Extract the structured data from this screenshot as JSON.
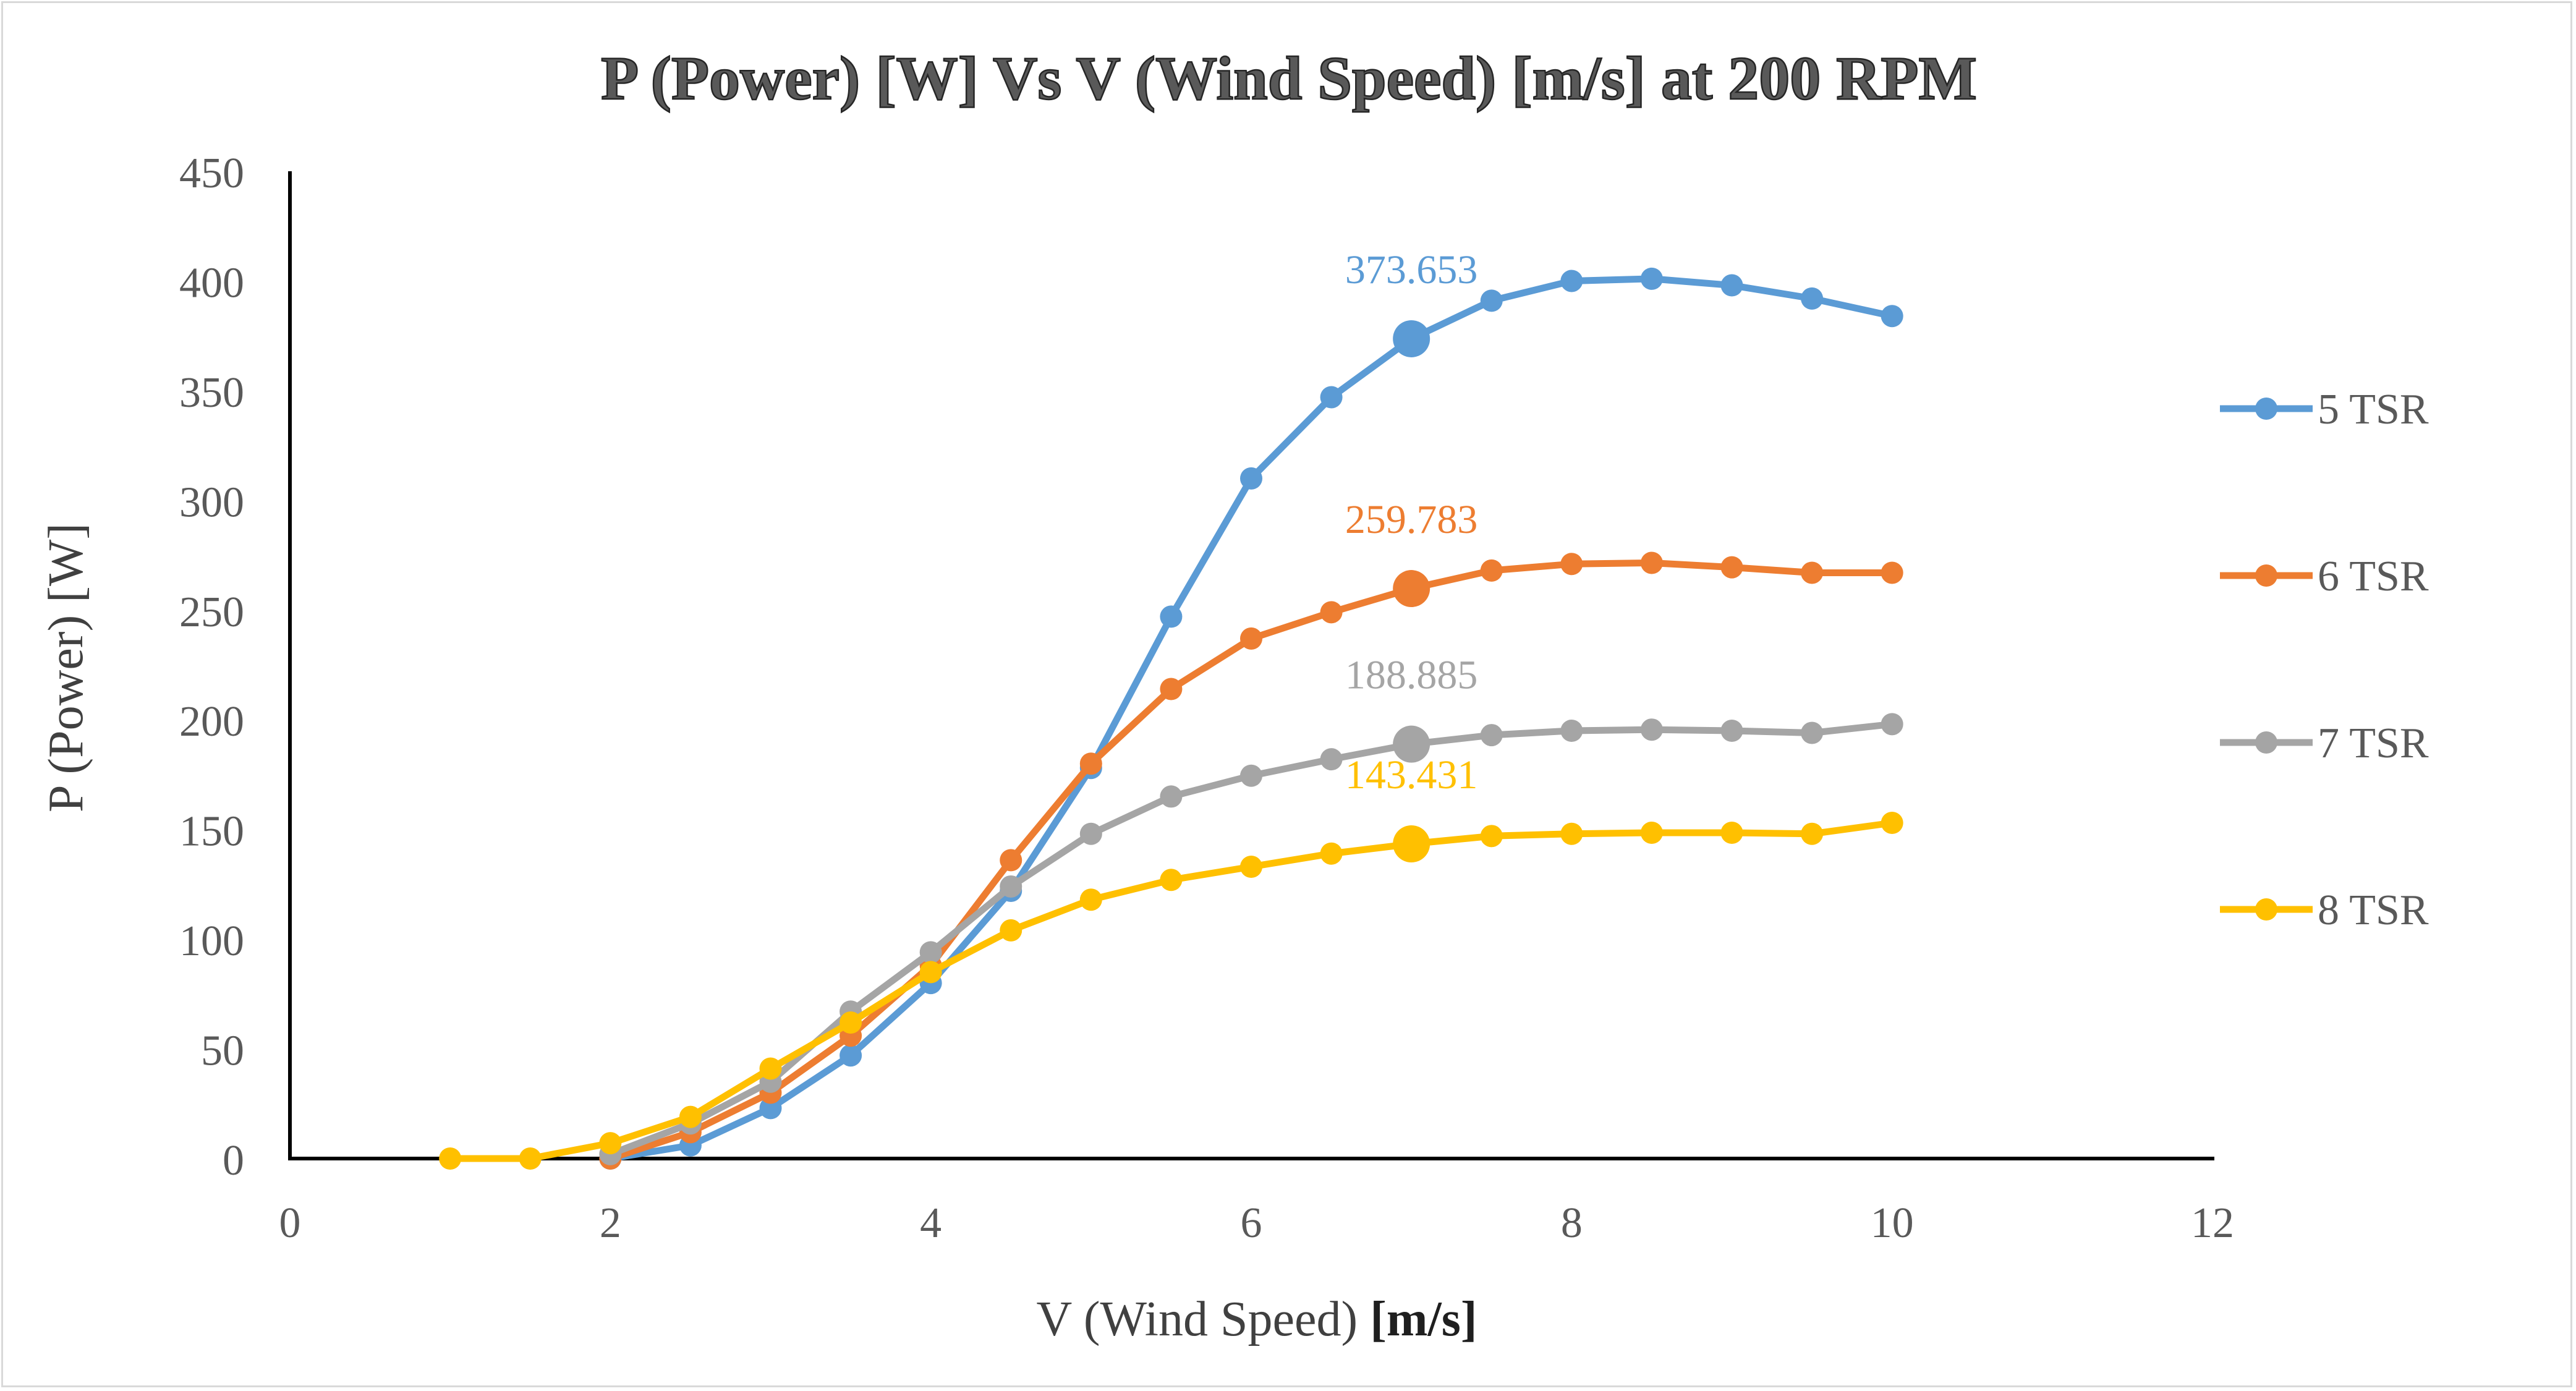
{
  "chart_data": {
    "type": "line",
    "title": "P (Power) [W] Vs V (Wind Speed) [m/s] at 200 RPM",
    "xlabel": "V (Wind Speed) ",
    "xlabel_bold": "[m/s]",
    "ylabel": "P (Power) [W]",
    "xlim": [
      0,
      12
    ],
    "ylim": [
      0,
      450
    ],
    "x_ticks": [
      0,
      2,
      4,
      6,
      8,
      10,
      12
    ],
    "y_ticks": [
      0,
      50,
      100,
      150,
      200,
      250,
      300,
      350,
      400,
      450
    ],
    "grid": false,
    "legend_position": "right",
    "series": [
      {
        "name": "5 TSR",
        "color": "#5b9bd5",
        "x": [
          2,
          2.5,
          3,
          3.5,
          4,
          4.5,
          5,
          5.5,
          6,
          6.5,
          7,
          7.5,
          8,
          8.5,
          9,
          9.5,
          10
        ],
        "y": [
          0,
          6,
          23,
          47,
          80,
          122,
          178,
          247,
          310,
          347,
          373.653,
          391,
          400,
          401,
          398,
          392,
          384
        ],
        "highlight": {
          "x": 7,
          "y": 373.653,
          "label": "373.653"
        }
      },
      {
        "name": "6 TSR",
        "color": "#ed7d31",
        "x": [
          2,
          2.5,
          3,
          3.5,
          4,
          4.5,
          5,
          5.5,
          6,
          6.5,
          7,
          7.5,
          8,
          8.5,
          9,
          9.5,
          10
        ],
        "y": [
          0,
          12,
          30,
          56,
          88,
          136,
          180,
          214,
          237,
          249,
          259.783,
          268,
          271,
          271.5,
          269.5,
          267,
          267
        ],
        "highlight": {
          "x": 7,
          "y": 259.783,
          "label": "259.783"
        }
      },
      {
        "name": "7 TSR",
        "color": "#a5a5a5",
        "x": [
          2,
          2.5,
          3,
          3.5,
          4,
          4.5,
          5,
          5.5,
          6,
          6.5,
          7,
          7.5,
          8,
          8.5,
          9,
          9.5,
          10
        ],
        "y": [
          2,
          16,
          35,
          67,
          94,
          124,
          148,
          165,
          174.5,
          182,
          188.885,
          193,
          195,
          195.5,
          195,
          194,
          198
        ],
        "highlight": {
          "x": 7,
          "y": 188.885,
          "label": "188.885"
        }
      },
      {
        "name": "8 TSR",
        "color": "#ffc000",
        "x": [
          1,
          1.5,
          2,
          2.5,
          3,
          3.5,
          4,
          4.5,
          5,
          5.5,
          6,
          6.5,
          7,
          7.5,
          8,
          8.5,
          9,
          9.5,
          10
        ],
        "y": [
          0,
          0,
          7,
          19,
          41,
          62,
          85,
          104,
          118,
          127,
          133,
          139,
          143.431,
          147,
          148,
          148.5,
          148.5,
          148,
          153
        ],
        "highlight": {
          "x": 7,
          "y": 143.431,
          "label": "143.431"
        }
      }
    ]
  }
}
